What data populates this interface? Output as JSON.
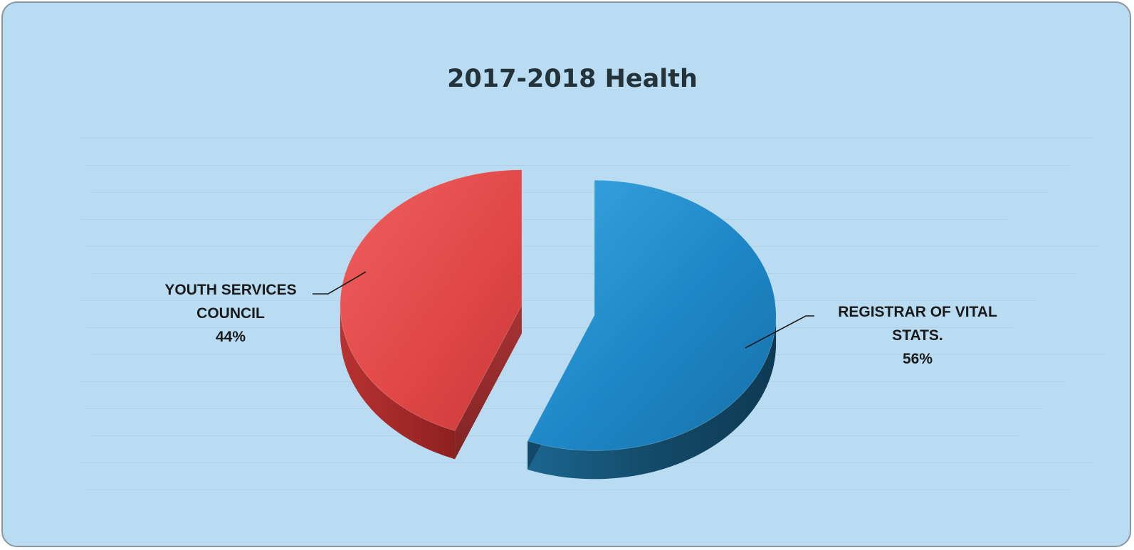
{
  "chart_data": {
    "type": "pie",
    "style": "3d-exploded",
    "title": "2017-2018 Health",
    "slices": [
      {
        "label_lines": [
          "YOUTH SERVICES",
          "COUNCIL"
        ],
        "value": 44,
        "value_label": "44%",
        "color": "#e04848"
      },
      {
        "label_lines": [
          "REGISTRAR OF VITAL",
          "STATS."
        ],
        "value": 56,
        "value_label": "56%",
        "color": "#1f86c6"
      }
    ]
  },
  "colors": {
    "background": "#b9dcf2",
    "border": "#8a96a0",
    "title": "#24323a"
  }
}
